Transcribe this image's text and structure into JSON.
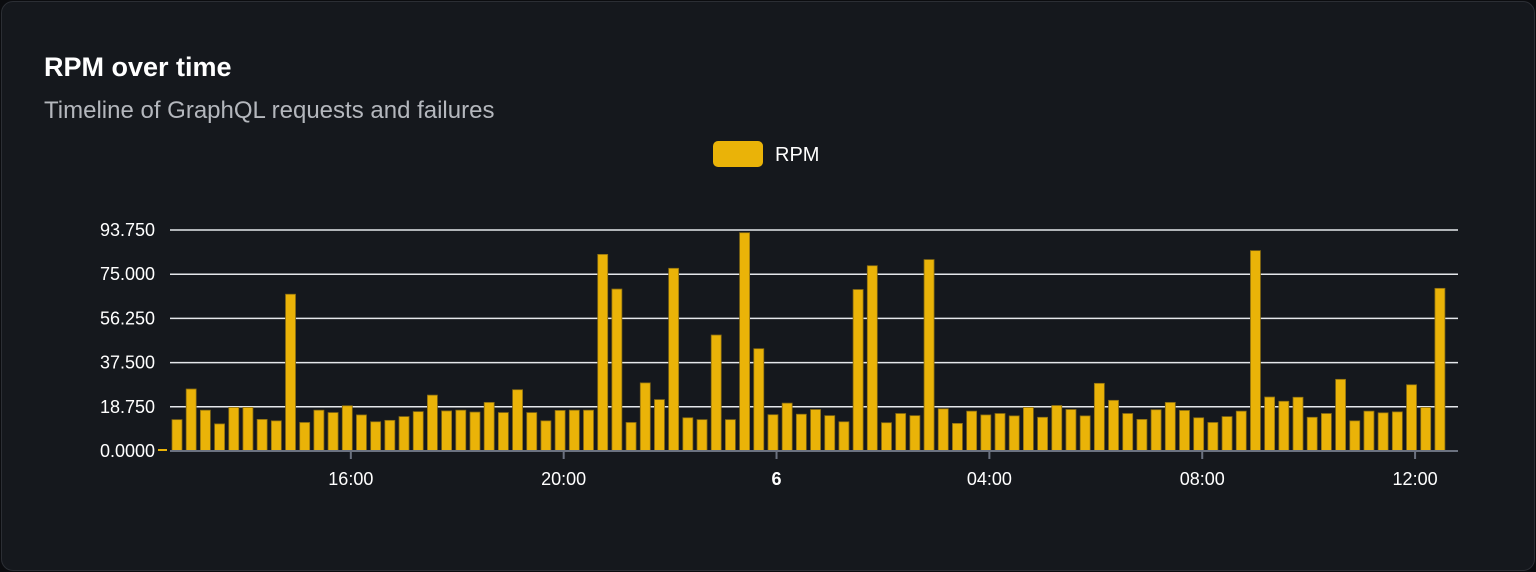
{
  "card": {
    "title": "RPM over time",
    "subtitle": "Timeline of GraphQL requests and failures"
  },
  "colors": {
    "bar": "#eab308",
    "bar_stroke": "#8a6d12",
    "grid": "#e5e7eb",
    "axis": "#6b7280",
    "background": "#15181d"
  },
  "chart_data": {
    "type": "bar",
    "title": "RPM over time",
    "subtitle": "Timeline of GraphQL requests and failures",
    "legend": {
      "entries": [
        "RPM"
      ],
      "placement": "top-center"
    },
    "grid": {
      "horizontal": true,
      "vertical": false
    },
    "x_start": "12:36",
    "bucket_minutes": 16,
    "x_ticks": [
      {
        "label": "16:00",
        "hour": 16,
        "bold": false
      },
      {
        "label": "20:00",
        "hour": 20,
        "bold": false
      },
      {
        "label": "6",
        "hour": 24,
        "bold": true
      },
      {
        "label": "04:00",
        "hour": 28,
        "bold": false
      },
      {
        "label": "08:00",
        "hour": 32,
        "bold": false
      },
      {
        "label": "12:00",
        "hour": 36,
        "bold": false
      }
    ],
    "y_ticks": [
      "0.0000",
      "18.750",
      "37.500",
      "56.250",
      "75.000",
      "93.750"
    ],
    "ylim": [
      0,
      93.75
    ],
    "series": [
      {
        "name": "RPM",
        "values": [
          13.3,
          26.3,
          17.3,
          11.5,
          18.5,
          18.5,
          13.4,
          12.8,
          66.5,
          12.1,
          17.3,
          16.3,
          19.2,
          15.3,
          12.4,
          13.0,
          14.6,
          16.7,
          23.7,
          17.0,
          17.3,
          16.5,
          20.6,
          16.3,
          26.0,
          16.3,
          12.8,
          17.2,
          17.3,
          17.3,
          83.4,
          68.7,
          12.1,
          28.9,
          21.8,
          77.5,
          14.1,
          13.3,
          49.2,
          13.3,
          92.6,
          43.4,
          15.4,
          20.3,
          15.6,
          17.6,
          15.0,
          12.4,
          68.5,
          78.6,
          12.0,
          15.9,
          15.0,
          81.2,
          17.9,
          11.7,
          16.9,
          15.3,
          15.9,
          14.9,
          18.5,
          14.3,
          19.3,
          17.6,
          14.9,
          28.7,
          21.5,
          15.9,
          13.4,
          17.5,
          20.6,
          17.2,
          14.1,
          12.1,
          14.6,
          16.9,
          85.0,
          22.9,
          21.1,
          22.8,
          14.3,
          15.9,
          30.4,
          12.8,
          16.9,
          16.2,
          16.6,
          28.1,
          18.5,
          69.0
        ]
      }
    ]
  }
}
